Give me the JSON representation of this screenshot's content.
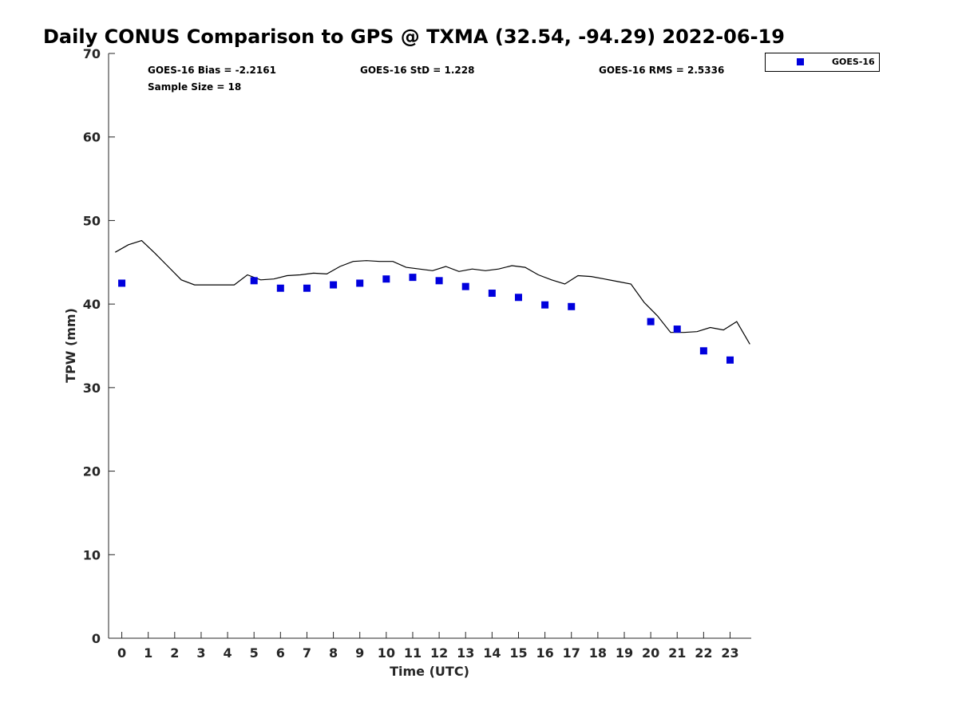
{
  "chart_data": {
    "type": "scatter",
    "title": "Daily CONUS Comparison to GPS @ TXMA (32.54, -94.29) 2022-06-19",
    "xlabel": "Time (UTC)",
    "ylabel": "TPW (mm)",
    "xlim": [
      -0.5,
      23.8
    ],
    "ylim": [
      0,
      70
    ],
    "xticks": [
      0,
      1,
      2,
      3,
      4,
      5,
      6,
      7,
      8,
      9,
      10,
      11,
      12,
      13,
      14,
      15,
      16,
      17,
      18,
      19,
      20,
      21,
      22,
      23
    ],
    "yticks": [
      0,
      10,
      20,
      30,
      40,
      50,
      60,
      70
    ],
    "grid": false,
    "legend_position": "top-right",
    "stats": {
      "bias": "GOES-16 Bias = -2.2161",
      "std": "GOES-16 StD = 1.228",
      "rms": "GOES-16 RMS = 2.5336",
      "sample": "Sample Size = 18"
    },
    "series": [
      {
        "name": "GOES-16",
        "color": "#0000dd",
        "marker": "square",
        "x": [
          0,
          5,
          6,
          7,
          8,
          9,
          10,
          11,
          12,
          13,
          14,
          15,
          16,
          17,
          20,
          21,
          22,
          23
        ],
        "y": [
          42.5,
          42.8,
          41.9,
          41.9,
          42.3,
          42.5,
          43.0,
          43.2,
          42.8,
          42.1,
          41.3,
          40.8,
          39.9,
          39.7,
          37.9,
          37.0,
          34.4,
          33.3
        ]
      },
      {
        "color": "#000000",
        "line": true,
        "x": [
          -0.25,
          0.25,
          0.75,
          1.25,
          1.75,
          2.25,
          2.75,
          3.25,
          3.75,
          4.25,
          4.75,
          5.25,
          5.75,
          6.25,
          6.75,
          7.25,
          7.75,
          8.25,
          8.75,
          9.25,
          9.75,
          10.25,
          10.75,
          11.25,
          11.75,
          12.25,
          12.75,
          13.25,
          13.75,
          14.25,
          14.75,
          15.25,
          15.75,
          16.25,
          16.75,
          17.25,
          17.75,
          18.25,
          18.75,
          19.25,
          19.75,
          20.25,
          20.75,
          21.25,
          21.75,
          22.25,
          22.75,
          23.25,
          23.75
        ],
        "y": [
          46.2,
          47.1,
          47.6,
          46.1,
          44.5,
          42.9,
          42.3,
          42.3,
          42.3,
          42.3,
          43.5,
          42.9,
          43.0,
          43.4,
          43.5,
          43.7,
          43.6,
          44.5,
          45.1,
          45.2,
          45.1,
          45.1,
          44.4,
          44.2,
          44.0,
          44.5,
          43.9,
          44.2,
          44.0,
          44.2,
          44.6,
          44.4,
          43.5,
          42.9,
          42.4,
          43.4,
          43.3,
          43.0,
          42.7,
          42.4,
          40.2,
          38.6,
          36.6,
          36.6,
          36.7,
          37.2,
          36.9,
          37.9,
          35.2
        ]
      }
    ]
  }
}
